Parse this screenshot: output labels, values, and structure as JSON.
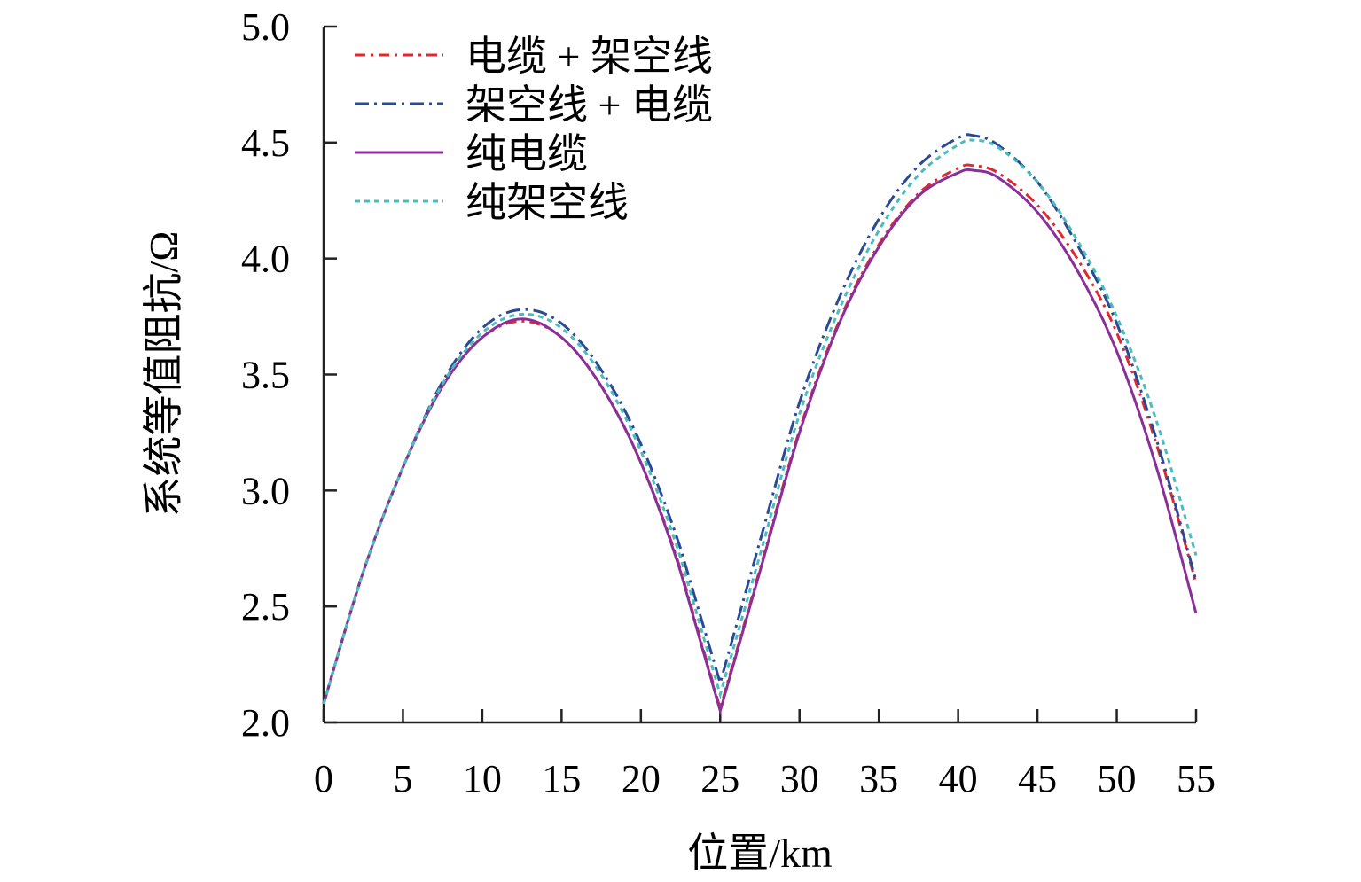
{
  "chart_data": {
    "type": "line",
    "xlabel": "位置/km",
    "ylabel": "系统等值阻抗/Ω",
    "xlim": [
      0,
      55
    ],
    "ylim": [
      2.0,
      5.0
    ],
    "xticks": [
      "0",
      "5",
      "10",
      "15",
      "20",
      "25",
      "30",
      "35",
      "40",
      "45",
      "50",
      "55"
    ],
    "yticks": [
      "2.0",
      "2.5",
      "3.0",
      "3.5",
      "4.0",
      "4.5",
      "5.0"
    ],
    "legend_position": "top-left",
    "x": [
      0,
      2.5,
      5,
      7.5,
      10,
      12.5,
      15,
      17.5,
      20,
      22.5,
      25,
      27.5,
      30,
      32.5,
      35,
      37.5,
      40,
      41,
      42.5,
      45,
      47.5,
      50,
      52.5,
      55
    ],
    "series": [
      {
        "name": "电缆 + 架空线",
        "color": "#e0282e",
        "dash": "12 6 3 6",
        "values": [
          2.08,
          2.65,
          3.1,
          3.45,
          3.66,
          3.73,
          3.66,
          3.45,
          3.12,
          2.66,
          2.06,
          2.66,
          3.26,
          3.73,
          4.06,
          4.28,
          4.39,
          4.4,
          4.37,
          4.23,
          4.0,
          3.68,
          3.2,
          2.6
        ]
      },
      {
        "name": "架空线 + 电缆",
        "color": "#2b4a95",
        "dash": "16 6 3 6",
        "values": [
          2.08,
          2.65,
          3.1,
          3.47,
          3.7,
          3.78,
          3.72,
          3.52,
          3.2,
          2.75,
          2.17,
          2.78,
          3.38,
          3.83,
          4.17,
          4.4,
          4.52,
          4.53,
          4.49,
          4.33,
          4.06,
          3.72,
          3.22,
          2.61
        ]
      },
      {
        "name": "纯电缆",
        "color": "#8a2f9a",
        "dash": "",
        "values": [
          2.08,
          2.65,
          3.1,
          3.45,
          3.66,
          3.74,
          3.66,
          3.45,
          3.12,
          2.65,
          2.05,
          2.65,
          3.25,
          3.72,
          4.05,
          4.27,
          4.37,
          4.38,
          4.35,
          4.2,
          3.95,
          3.6,
          3.1,
          2.47
        ]
      },
      {
        "name": "纯架空线",
        "color": "#4bbcbc",
        "dash": "6 5",
        "values": [
          2.08,
          2.65,
          3.1,
          3.46,
          3.68,
          3.76,
          3.7,
          3.5,
          3.17,
          2.71,
          2.12,
          2.72,
          3.33,
          3.78,
          4.12,
          4.36,
          4.49,
          4.51,
          4.48,
          4.33,
          4.08,
          3.75,
          3.3,
          2.72
        ]
      }
    ]
  }
}
